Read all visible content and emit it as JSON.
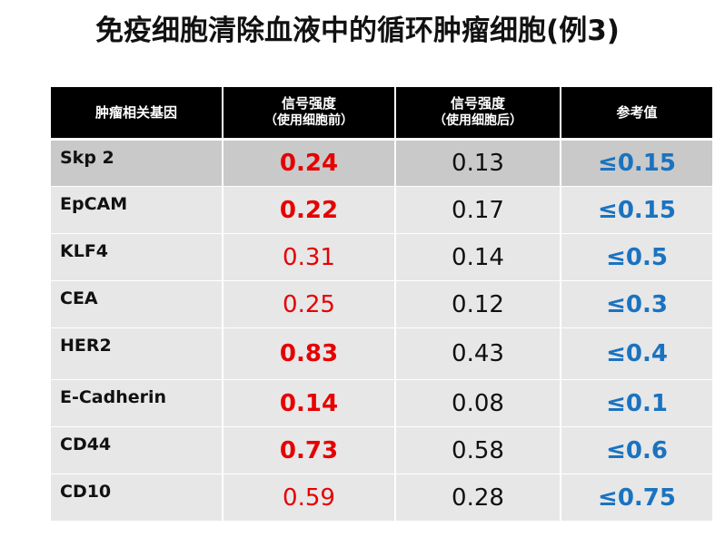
{
  "title": "免疫细胞清除血液中的循环肿瘤细胞(例3)",
  "table": {
    "headers": [
      {
        "line1": "肿瘤相关基因",
        "line2": ""
      },
      {
        "line1": "信号强度",
        "line2": "（使用细胞前）"
      },
      {
        "line1": "信号强度",
        "line2": "（使用细胞后）"
      },
      {
        "line1": "参考值",
        "line2": ""
      }
    ],
    "rows": [
      {
        "gene": "Skp 2",
        "before": "0.24",
        "before_bold": true,
        "after": "0.13",
        "ref": "≤0.15"
      },
      {
        "gene": "EpCAM",
        "before": "0.22",
        "before_bold": true,
        "after": "0.17",
        "ref": "≤0.15"
      },
      {
        "gene": "KLF4",
        "before": "0.31",
        "before_bold": false,
        "after": "0.14",
        "ref": "≤0.5"
      },
      {
        "gene": "CEA",
        "before": "0.25",
        "before_bold": false,
        "after": "0.12",
        "ref": "≤0.3"
      },
      {
        "gene": "HER2",
        "before": "0.83",
        "before_bold": true,
        "after": "0.43",
        "ref": "≤0.4"
      },
      {
        "gene": "E-Cadherin",
        "before": "0.14",
        "before_bold": true,
        "after": "0.08",
        "ref": "≤0.1"
      },
      {
        "gene": "CD44",
        "before": "0.73",
        "before_bold": true,
        "after": "0.58",
        "ref": "≤0.6"
      },
      {
        "gene": "CD10",
        "before": "0.59",
        "before_bold": false,
        "after": "0.28",
        "ref": "≤0.75"
      }
    ]
  },
  "colors": {
    "header_bg": "#000000",
    "header_text": "#ffffff",
    "before_value": "#e60000",
    "reference_value": "#1a73c0",
    "cell_bg": "#e7e7e7",
    "first_row_bg": "#c9c9c9"
  }
}
